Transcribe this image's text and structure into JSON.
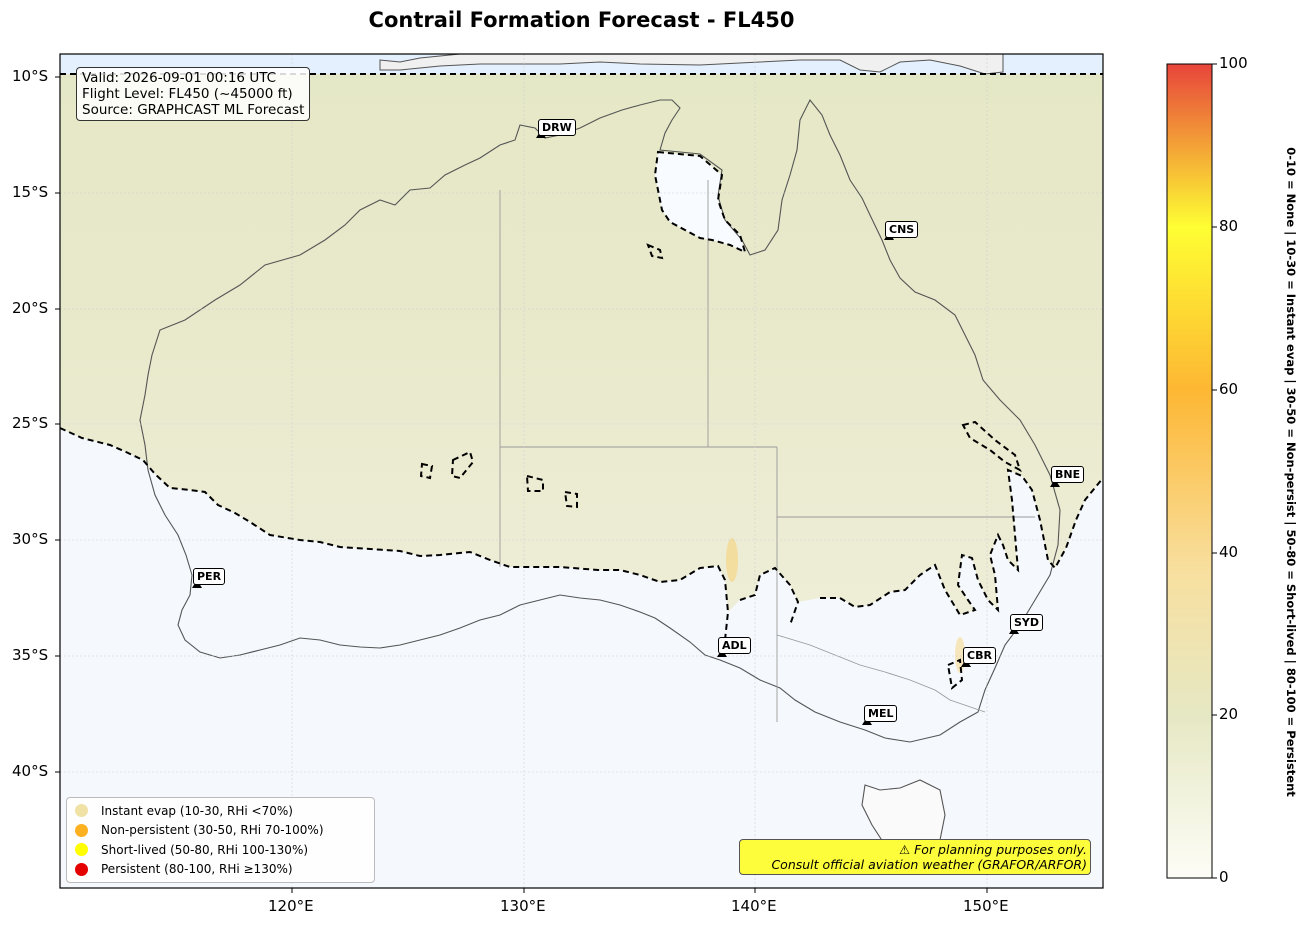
{
  "title": "Contrail Formation Forecast - FL450",
  "info": {
    "valid": "Valid: 2026-09-01 00:16 UTC",
    "flight_level": "Flight Level: FL450 (~45000 ft)",
    "source": "Source: GRAPHCAST ML Forecast"
  },
  "axes": {
    "x_ticks": [
      "120°E",
      "130°E",
      "140°E",
      "150°E"
    ],
    "y_ticks": [
      "10°S",
      "15°S",
      "20°S",
      "25°S",
      "30°S",
      "35°S",
      "40°S"
    ]
  },
  "colorbar": {
    "ticks": [
      "0",
      "20",
      "40",
      "60",
      "80",
      "100"
    ],
    "label": "0-10 = None  |  10-30 = Instant evap  |  30-50 = Non-persist  |  50-80 = Short-lived  |  80-100 = Persistent",
    "colors": [
      "#fdfdf6",
      "#e6e8c4",
      "#f8df9e",
      "#fdb733",
      "#fefe33",
      "#e8453b"
    ]
  },
  "cities": [
    {
      "code": "DRW"
    },
    {
      "code": "CNS"
    },
    {
      "code": "BNE"
    },
    {
      "code": "PER"
    },
    {
      "code": "SYD"
    },
    {
      "code": "ADL"
    },
    {
      "code": "CBR"
    },
    {
      "code": "MEL"
    }
  ],
  "legend": [
    {
      "label": "Instant evap (10-30, RHi <70%)",
      "color": "#f0e2a5"
    },
    {
      "label": "Non-persistent (30-50, RHi 70-100%)",
      "color": "#fdb020"
    },
    {
      "label": "Short-lived (50-80, RHi 100-130%)",
      "color": "#ffff00"
    },
    {
      "label": "Persistent (80-100, RHi ≥130%)",
      "color": "#e50000"
    }
  ],
  "disclaimer": {
    "line1": "⚠ For planning purposes only.",
    "line2": "Consult official aviation weather (GRAFOR/ARFOR)"
  }
}
